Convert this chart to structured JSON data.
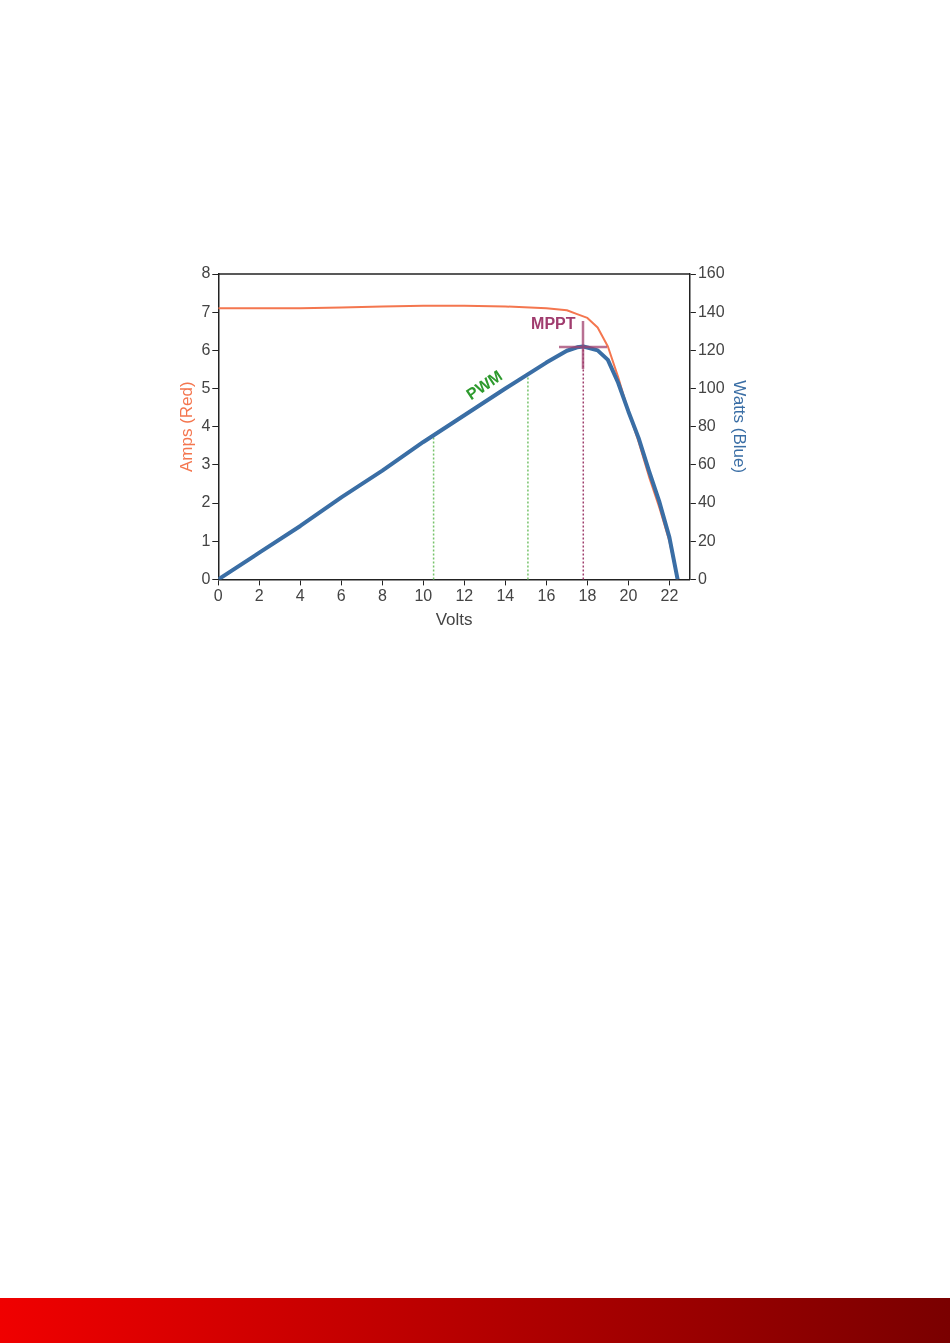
{
  "chart_data": {
    "type": "line",
    "xlabel": "Volts",
    "ylabel": "Amps (Red)",
    "y2label": "Watts (Blue)",
    "xlim": [
      0,
      23
    ],
    "xticks": [
      0,
      2,
      4,
      6,
      8,
      10,
      12,
      14,
      16,
      18,
      20,
      22
    ],
    "ylim": [
      0,
      8
    ],
    "yticks": [
      0,
      1,
      2,
      3,
      4,
      5,
      6,
      7,
      8
    ],
    "y2lim": [
      0,
      160
    ],
    "y2ticks": [
      0,
      20,
      40,
      60,
      80,
      100,
      120,
      140,
      160
    ],
    "grid": false,
    "legend": false,
    "marker": "none",
    "line_style": "solid",
    "series": [
      {
        "color": "#f4764f",
        "x": [
          0,
          2,
          4,
          6,
          8,
          10,
          12,
          14,
          16,
          17,
          17.5,
          18,
          18.5,
          19,
          19.5,
          20,
          20.5,
          21,
          21.5,
          22,
          22.4
        ],
        "values": [
          7.1,
          7.1,
          7.1,
          7.12,
          7.15,
          7.17,
          7.17,
          7.15,
          7.1,
          7.05,
          6.95,
          6.85,
          6.6,
          6.1,
          5.3,
          4.4,
          3.6,
          2.7,
          1.9,
          1.0,
          0
        ]
      },
      {
        "color": "#3a6ea5",
        "axis": "y2",
        "x": [
          0,
          2,
          4,
          6,
          8,
          10,
          12,
          14,
          16,
          17,
          17.5,
          17.8,
          18,
          18.5,
          19,
          19.5,
          20,
          20.5,
          21,
          21.5,
          22,
          22.4
        ],
        "values": [
          0,
          14,
          28,
          43,
          57,
          72,
          86,
          100,
          113.6,
          119.8,
          121.6,
          122,
          121.5,
          120,
          115,
          103,
          88,
          74,
          57,
          41,
          22,
          0
        ]
      }
    ],
    "ref_lines": [
      {
        "axis": "x",
        "value": 10.5,
        "label": null,
        "color": "#77c36b",
        "line_style": "dotted"
      },
      {
        "axis": "x",
        "value": 15.1,
        "label": null,
        "color": "#77c36b",
        "line_style": "dotted"
      },
      {
        "axis": "x",
        "value": 17.8,
        "label": null,
        "color": "#a0406e",
        "line_style": "dotted"
      }
    ],
    "annotations": [
      "PWM",
      {
        "text": "MPPT",
        "x": 17.8,
        "y": 6.1
      }
    ]
  }
}
